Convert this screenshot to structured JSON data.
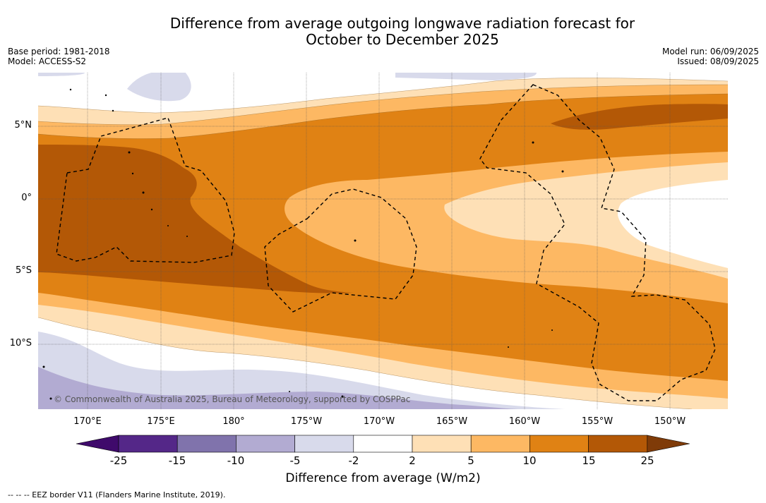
{
  "title_line1": "Difference from average outgoing longwave radiation forecast for",
  "title_line2": "October to December 2025",
  "base_period": "Base period: 1981-2018",
  "model": "Model: ACCESS-S2",
  "model_run": "Model run: 06/09/2025",
  "issued": "Issued: 08/09/2025",
  "copyright": "© Commonwealth of Australia 2025, Bureau of Meteorology, supported by COSPPac",
  "lon_labels": [
    "170°E",
    "175°E",
    "180°",
    "175°W",
    "170°W",
    "165°W",
    "160°W",
    "155°W",
    "150°W"
  ],
  "lat_labels": [
    "5°N",
    "0°",
    "5°S",
    "10°S"
  ],
  "colorbar": {
    "ticks": [
      "-25",
      "-15",
      "-10",
      "-5",
      "-2",
      "2",
      "5",
      "10",
      "15",
      "25"
    ],
    "colors": [
      "#3f0a6b",
      "#542788",
      "#8073ac",
      "#b2abd2",
      "#d8daeb",
      "#ffffff",
      "#fee0b6",
      "#fdb863",
      "#e08214",
      "#b35806",
      "#7f3b08"
    ],
    "title": "Difference from average (W/m2)"
  },
  "legend": "--  --  -- EEZ border V11 (Flanders Marine Institute, 2019)."
}
